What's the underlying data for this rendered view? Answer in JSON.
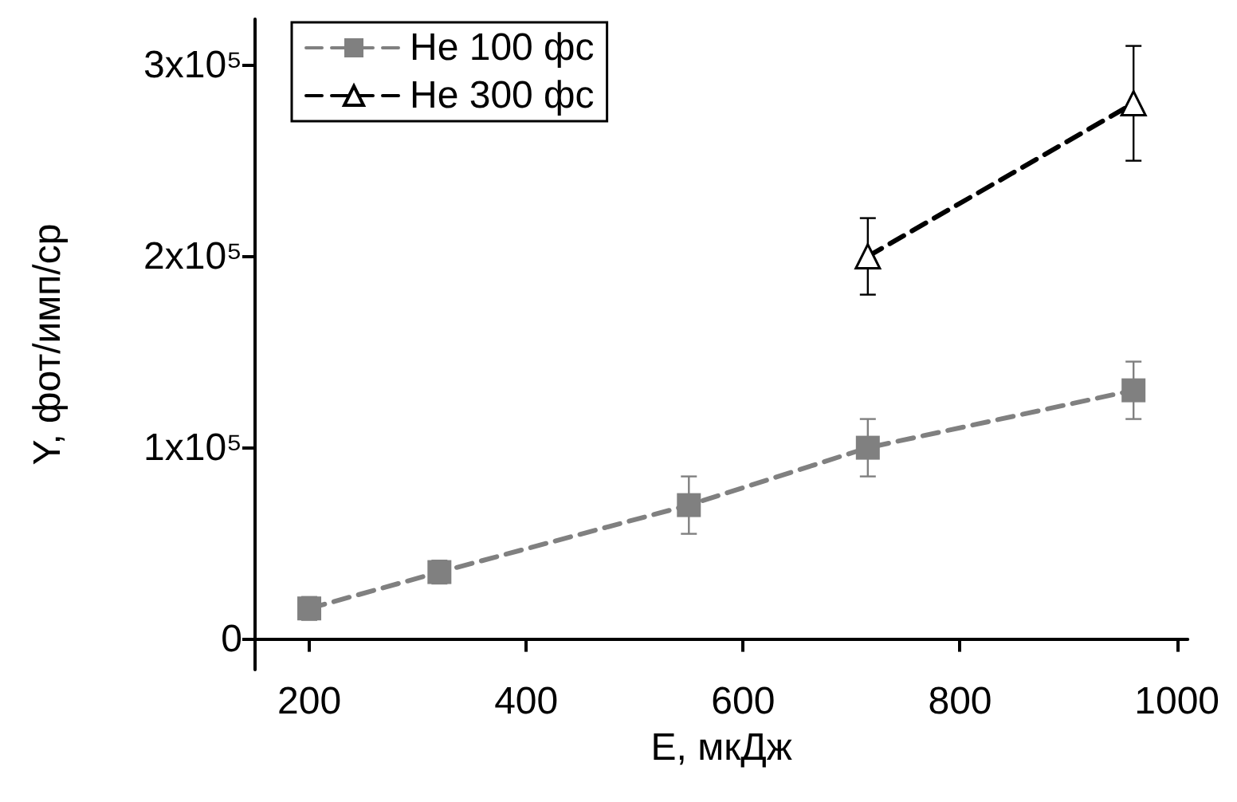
{
  "chart_data": {
    "type": "line",
    "xlabel": "E, мкДж",
    "ylabel": "Y, фот/имп/ср",
    "xlim": [
      150,
      1010
    ],
    "xticks": [
      200,
      400,
      600,
      800,
      1000
    ],
    "ylim": [
      -16000,
      324000
    ],
    "yticks": [
      {
        "value": 0,
        "label": "0"
      },
      {
        "value": 100000,
        "label": "1x10⁵"
      },
      {
        "value": 200000,
        "label": "2x10⁵"
      },
      {
        "value": 300000,
        "label": "3x10⁵"
      }
    ],
    "grid": false,
    "legend": "top left",
    "series": [
      {
        "name": "He 100 фс",
        "color": "#808080",
        "marker": "square",
        "line_style": "dashed",
        "x": [
          200,
          320,
          550,
          715,
          960
        ],
        "values": [
          16000,
          35000,
          70000,
          100000,
          130000
        ],
        "errors": [
          6000,
          6000,
          15000,
          15000,
          15000
        ]
      },
      {
        "name": "He 300 фс",
        "color": "#000000",
        "marker": "triangle",
        "line_style": "dashed",
        "x": [
          715,
          960
        ],
        "values": [
          200000,
          280000
        ],
        "errors": [
          20000,
          30000
        ]
      }
    ]
  }
}
